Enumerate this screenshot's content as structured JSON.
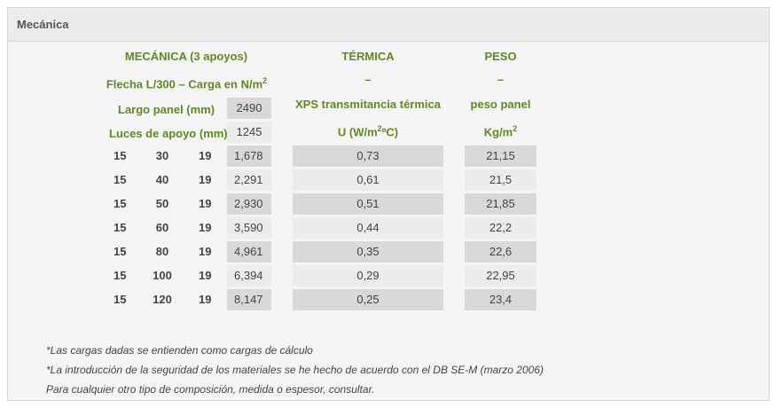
{
  "panel_title": "Mecánica",
  "mech": {
    "title": "MECÁNICA (3 apoyos)",
    "flecha": "Flecha L/300 – Carga en N/m",
    "flecha_sup": "2",
    "largo_label": "Largo panel (mm)",
    "largo_value": "2490",
    "luces_label": "Luces de apoyo (mm)",
    "luces_value": "1245"
  },
  "term": {
    "title": "TÉRMICA",
    "dash": "–",
    "desc": "XPS transmitancia térmica",
    "unit_pre": "U (W/m",
    "unit_sup": "2",
    "unit_post": "ºC)"
  },
  "peso": {
    "title": "PESO",
    "dash": "–",
    "desc": "peso panel",
    "unit_pre": "Kg/m",
    "unit_sup": "2"
  },
  "rows": [
    {
      "a": "15",
      "b": "30",
      "c": "19",
      "carga": "1,678",
      "u": "0,73",
      "peso": "21,15"
    },
    {
      "a": "15",
      "b": "40",
      "c": "19",
      "carga": "2,291",
      "u": "0,61",
      "peso": "21,5"
    },
    {
      "a": "15",
      "b": "50",
      "c": "19",
      "carga": "2,930",
      "u": "0,51",
      "peso": "21,85"
    },
    {
      "a": "15",
      "b": "60",
      "c": "19",
      "carga": "3,590",
      "u": "0,44",
      "peso": "22,2"
    },
    {
      "a": "15",
      "b": "80",
      "c": "19",
      "carga": "4,961",
      "u": "0,35",
      "peso": "22,6"
    },
    {
      "a": "15",
      "b": "100",
      "c": "19",
      "carga": "6,394",
      "u": "0,29",
      "peso": "22,95"
    },
    {
      "a": "15",
      "b": "120",
      "c": "19",
      "carga": "8,147",
      "u": "0,25",
      "peso": "23,4"
    }
  ],
  "notes": [
    "*Las cargas dadas se entienden como cargas de cálculo",
    "*La introducción de la seguridad de los materiales se he hecho de acuerdo con el DB SE-M (marzo 2006)",
    "Para cualquier otro tipo de composición, medida o espesor, consultar."
  ]
}
